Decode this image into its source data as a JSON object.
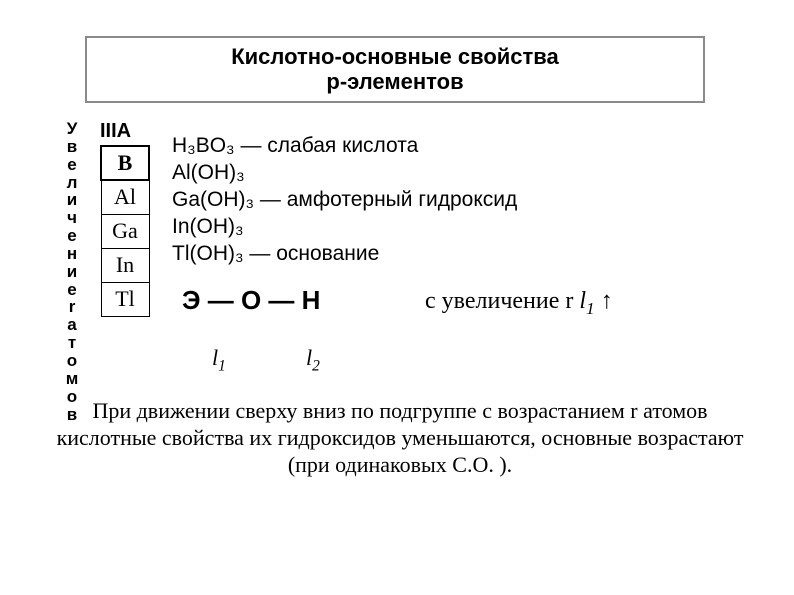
{
  "title": {
    "line1": "Кислотно-основные свойства",
    "line2": "p-элементов"
  },
  "vertical_label": [
    "У",
    "в",
    "е",
    "л",
    "и",
    "ч",
    "е",
    "н",
    "и",
    "е",
    "r",
    "а",
    "т",
    "о",
    "м",
    "о",
    "в"
  ],
  "group": "IIIA",
  "elements": [
    "B",
    "Al",
    "Ga",
    "In",
    "Tl"
  ],
  "compounds": {
    "r0": "H₃BO₃ — слабая кислота",
    "r1": "Al(OH)₃",
    "r2": "Ga(OH)₃  — амфотерный  гидроксид",
    "r3": "In(OH)₃",
    "r4": "Tl(OH)₃ — основание"
  },
  "eoh": "Э — О — Н",
  "phrase_prefix": "с увеличение r ",
  "phrase_l": "l",
  "phrase_sub": "1",
  "phrase_arrow": " ↑",
  "l1": "l",
  "l1_sub": "1",
  "l2": "l",
  "l2_sub": "2",
  "bottom": "При движении сверху вниз по подгруппе с возрастанием r атомов кислотные свойства их гидроксидов уменьшаются, основные возрастают (при одинаковых С.О. )."
}
